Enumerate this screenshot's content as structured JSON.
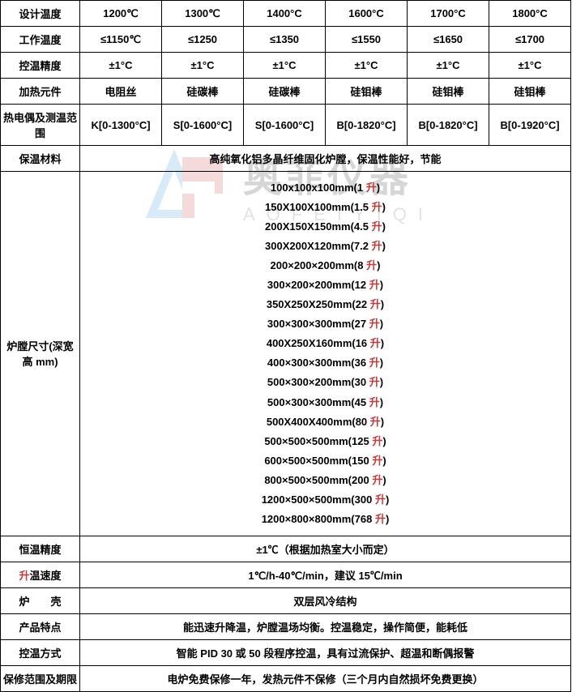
{
  "watermark": {
    "cn": "奥菲仪器",
    "en": "AOFEIYIQI"
  },
  "rowHeaders": {
    "designTemp": "设计温度",
    "workTemp": "工作温度",
    "tempAccuracy": "控温精度",
    "heatElement": "加热元件",
    "thermo": "热电偶及测温范围",
    "insulation": "保温材料",
    "chamberSize": "炉膛尺寸(深宽高 mm)",
    "constTempAcc": "恒温精度",
    "heatRate": "升温速度",
    "heatRate_colored": "升",
    "heatRate_rest": "温速度",
    "shell": "炉　　壳",
    "features": "产品特点",
    "ctrlMode": "控温方式",
    "warranty": "保修范围及期限"
  },
  "headers": [
    "1200℃",
    "1300℃",
    "1400°C",
    "1600°C",
    "1700°C",
    "1800°C"
  ],
  "workTemps": [
    "≤1150℃",
    "≤1250",
    "≤1350",
    "≤1550",
    "≤1650",
    "≤1700"
  ],
  "tempAcc": [
    "±1°C",
    "±1°C",
    "±1°C",
    "±1°C",
    "±1°C",
    "±1°C"
  ],
  "heatEl": [
    "电阻丝",
    "硅碳棒",
    "硅碳棒",
    "硅钼棒",
    "硅钼棒",
    "硅钼棒"
  ],
  "thermo": [
    "K[0-1300°C]",
    "S[0-1600°C]",
    "S[0-1600°C]",
    "B[0-1820°C]",
    "B[0-1820°C]",
    "B[0-1920°C]"
  ],
  "insulation": "高纯氧化铝多晶纤维固化炉膛，保温性能好，节能",
  "sizes": [
    "100x100x100mm(1 升)",
    "150X100X100mm(1.5 升)",
    "200X150X150mm(4.5 升)",
    "300X200X120mm(7.2 升)",
    "200×200×200mm(8 升)",
    "300×200×200mm(12 升)",
    "350X250X250mm(22 升)",
    "300×300×300mm(27 升)",
    "400X250X160mm(16 升)",
    "400×300×300mm(36 升)",
    "500×300×200mm(30 升)",
    "500×300×300mm(45 升)",
    "500X400X400mm(80 升)",
    "500×500×500mm(125 升)",
    "600×500×500mm(150 升)",
    "800×500×500mm(200 升)",
    "1200×500×500mm(300 升)",
    "1200×800×800mm(768 升)"
  ],
  "constTempAcc": "±1℃（根据加热室大小而定）",
  "heatRate": "1℃/h-40℃/min，建议 15℃/min",
  "shell": "双层风冷结构",
  "features": "能迅速升降温，炉膛温场均衡。控温稳定，操作简便，能耗低",
  "ctrlMode": "智能 PID 30 或 50 段程序控温，具有过流保护、超温和断偶报警",
  "warranty": "电炉免费保修一年，发热元件不保修（三个月内自然损坏免费更换）",
  "style": {
    "borderColor": "#000000",
    "headerBg": "transparent",
    "textColor": "#000000",
    "accentColor": "#c43a3a",
    "fontSize": 13,
    "fontWeight": "bold",
    "tableWidth": 705,
    "colHeaderWidth": 98,
    "colDataWidth": 101
  }
}
